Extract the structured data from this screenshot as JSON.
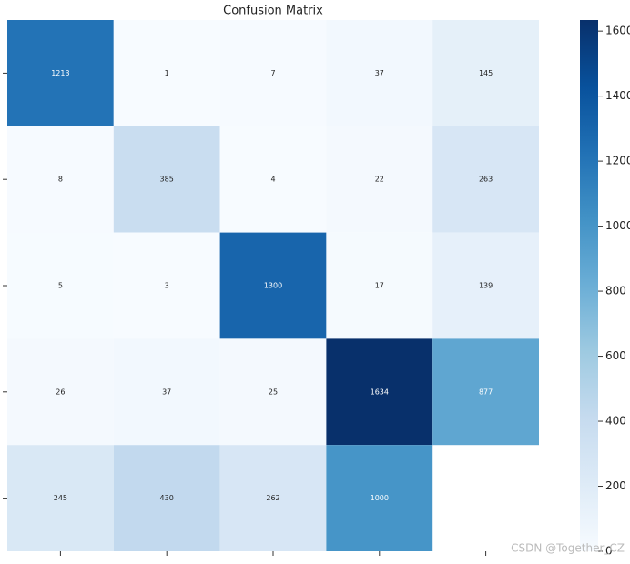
{
  "chart_data": {
    "type": "heatmap",
    "title": "Confusion Matrix",
    "categories": [
      null,
      null,
      null,
      null,
      null
    ],
    "values": [
      [
        1213,
        1,
        7,
        37,
        145
      ],
      [
        8,
        385,
        4,
        22,
        263
      ],
      [
        5,
        3,
        1300,
        17,
        139
      ],
      [
        26,
        37,
        25,
        1634,
        877
      ],
      [
        245,
        430,
        262,
        1000,
        null
      ]
    ],
    "colormap": "Blues",
    "zlim": [
      0,
      1634
    ],
    "zticks": [
      0,
      200,
      400,
      600,
      800,
      1000,
      1200,
      1400,
      1600
    ],
    "watermark": "CSDN @Together_CZ"
  }
}
